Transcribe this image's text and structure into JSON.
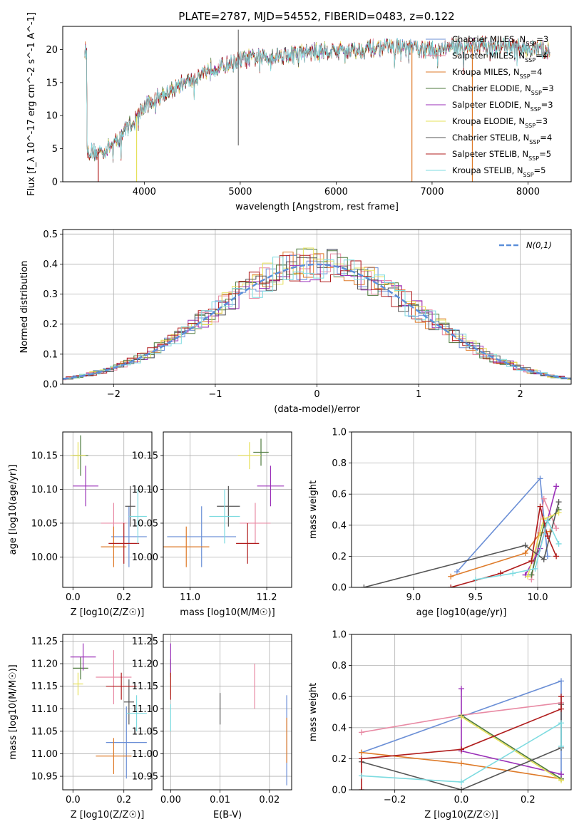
{
  "title": "PLATE=2787, MJD=54552, FIBERID=0483, z=0.122",
  "colors": {
    "Chabrier MILES": "#6b8fd6",
    "Salpeter MILES": "#e88aa4",
    "Kroupa MILES": "#de7a28",
    "Chabrier ELODIE": "#4e7a3e",
    "Salpeter ELODIE": "#9a2fb8",
    "Kroupa ELODIE": "#e6e05a",
    "Chabrier STELIB": "#555555",
    "Salpeter STELIB": "#b01c1c",
    "Kroupa STELIB": "#7ddbe0",
    "normal": "#5b8fd9"
  },
  "models": [
    {
      "name": "Chabrier MILES",
      "color": "#6b8fd6",
      "nssp": "3"
    },
    {
      "name": "Salpeter MILES",
      "color": "#e88aa4",
      "nssp": "4"
    },
    {
      "name": "Kroupa MILES",
      "color": "#de7a28",
      "nssp": "4"
    },
    {
      "name": "Chabrier ELODIE",
      "color": "#4e7a3e",
      "nssp": "3"
    },
    {
      "name": "Salpeter ELODIE",
      "color": "#9a2fb8",
      "nssp": "3"
    },
    {
      "name": "Kroupa ELODIE",
      "color": "#e6e05a",
      "nssp": "3"
    },
    {
      "name": "Chabrier STELIB",
      "color": "#555555",
      "nssp": "4"
    },
    {
      "name": "Salpeter STELIB",
      "color": "#b01c1c",
      "nssp": "5"
    },
    {
      "name": "Kroupa STELIB",
      "color": "#7ddbe0",
      "nssp": "5"
    }
  ],
  "legend_labels": [
    "Chabrier MILES, N=3",
    "Salpeter MILES, N=4",
    "Kroupa MILES, N=4",
    "Chabrier ELODIE, N=3",
    "Salpeter ELODIE, N=3",
    "Kroupa ELODIE, N=3",
    "Chabrier STELIB, N=4",
    "Salpeter STELIB, N=5",
    "Kroupa STELIB, N=5"
  ],
  "chart_data": [
    {
      "type": "line",
      "panel": "spectrum",
      "xlabel": "wavelength [Angstrom, rest frame]",
      "ylabel": "Flux [f_λ 10^-17 erg cm^-2 s^-1 A^-1]",
      "xlim": [
        3150,
        8450
      ],
      "ylim": [
        0,
        23.5
      ],
      "xticks": [
        4000,
        5000,
        6000,
        7000,
        8000
      ],
      "yticks": [
        0,
        5,
        10,
        15,
        20
      ],
      "envelope": {
        "x": [
          3400,
          3500,
          3600,
          3700,
          3800,
          3900,
          4000,
          4100,
          4200,
          4300,
          4400,
          4500,
          4600,
          4700,
          4800,
          4900,
          5000,
          5200,
          5400,
          5600,
          5800,
          6000,
          6200,
          6400,
          6600,
          6800,
          7000,
          7200,
          7400,
          7600,
          7800,
          8000,
          8200
        ],
        "y": [
          4.8,
          4.5,
          5.0,
          6.0,
          8.0,
          9.5,
          11.5,
          12.5,
          13.5,
          14.0,
          15.0,
          15.5,
          16.5,
          17.5,
          17.5,
          18.0,
          18.5,
          19.0,
          19.2,
          19.5,
          19.8,
          20.0,
          20.0,
          20.3,
          20.5,
          20.3,
          20.0,
          20.5,
          20.7,
          20.8,
          20.5,
          20.3,
          20.0
        ]
      },
      "grid": false,
      "legend": "top-right"
    },
    {
      "type": "line",
      "panel": "residual histogram",
      "xlabel": "(data-model)/error",
      "ylabel": "Normed distribution",
      "xlim": [
        -2.5,
        2.5
      ],
      "ylim": [
        0,
        0.515
      ],
      "xticks": [
        -2,
        -1,
        0,
        1,
        2
      ],
      "yticks": [
        0.0,
        0.1,
        0.2,
        0.3,
        0.4,
        0.5
      ],
      "reference_label": "N(0,1)",
      "grid": true,
      "legend": "top-right"
    },
    {
      "type": "scatter",
      "panel": "age vs Z",
      "xlabel": "Z [log10(Z/Z☉)]",
      "ylabel": "age  [log10(age/yr)]",
      "xlim": [
        -0.04,
        0.31
      ],
      "ylim": [
        9.955,
        10.185
      ],
      "xticks": [
        0.0,
        0.2
      ],
      "yticks": [
        10.0,
        10.05,
        10.1,
        10.15
      ],
      "points": [
        {
          "series": "Chabrier MILES",
          "x": 0.22,
          "y": 10.03,
          "xerr": 0.07,
          "yerr": 0.045
        },
        {
          "series": "Salpeter MILES",
          "x": 0.16,
          "y": 10.05,
          "xerr": 0.05,
          "yerr": 0.03
        },
        {
          "series": "Kroupa MILES",
          "x": 0.16,
          "y": 10.015,
          "xerr": 0.05,
          "yerr": 0.03
        },
        {
          "series": "Chabrier ELODIE",
          "x": 0.03,
          "y": 10.15,
          "xerr": 0.03,
          "yerr": 0.03
        },
        {
          "series": "Salpeter ELODIE",
          "x": 0.05,
          "y": 10.105,
          "xerr": 0.05,
          "yerr": 0.03
        },
        {
          "series": "Kroupa ELODIE",
          "x": 0.02,
          "y": 10.15,
          "xerr": 0.03,
          "yerr": 0.02
        },
        {
          "series": "Chabrier STELIB",
          "x": 0.225,
          "y": 10.075,
          "xerr": 0.02,
          "yerr": 0.03
        },
        {
          "series": "Salpeter STELIB",
          "x": 0.2,
          "y": 10.02,
          "xerr": 0.06,
          "yerr": 0.03
        },
        {
          "series": "Kroupa STELIB",
          "x": 0.255,
          "y": 10.06,
          "xerr": 0.035,
          "yerr": 0.04
        }
      ],
      "grid": true
    },
    {
      "type": "scatter",
      "panel": "age vs mass",
      "xlabel": "mass [log10(M/M☉)]",
      "ylabel": "",
      "xlim": [
        10.93,
        11.265
      ],
      "ylim": [
        9.955,
        10.185
      ],
      "xticks": [
        11.0,
        11.2
      ],
      "yticks": [
        10.0,
        10.05,
        10.1,
        10.15
      ],
      "points": [
        {
          "series": "Chabrier MILES",
          "x": 11.03,
          "y": 10.03,
          "xerr": 0.09,
          "yerr": 0.045
        },
        {
          "series": "Salpeter MILES",
          "x": 11.17,
          "y": 10.05,
          "xerr": 0.04,
          "yerr": 0.03
        },
        {
          "series": "Kroupa MILES",
          "x": 10.99,
          "y": 10.015,
          "xerr": 0.06,
          "yerr": 0.03
        },
        {
          "series": "Chabrier ELODIE",
          "x": 11.185,
          "y": 10.155,
          "xerr": 0.02,
          "yerr": 0.02
        },
        {
          "series": "Salpeter ELODIE",
          "x": 11.21,
          "y": 10.105,
          "xerr": 0.035,
          "yerr": 0.03
        },
        {
          "series": "Kroupa ELODIE",
          "x": 11.155,
          "y": 10.15,
          "xerr": 0.03,
          "yerr": 0.02
        },
        {
          "series": "Chabrier STELIB",
          "x": 11.1,
          "y": 10.075,
          "xerr": 0.03,
          "yerr": 0.03
        },
        {
          "series": "Salpeter STELIB",
          "x": 11.15,
          "y": 10.02,
          "xerr": 0.03,
          "yerr": 0.03
        },
        {
          "series": "Kroupa STELIB",
          "x": 11.09,
          "y": 10.06,
          "xerr": 0.04,
          "yerr": 0.04
        }
      ],
      "grid": true
    },
    {
      "type": "line",
      "panel": "mass weight vs age",
      "xlabel": "age  [log10(age/yr)]",
      "ylabel": "mass weight",
      "xlim": [
        8.5,
        10.27
      ],
      "ylim": [
        0,
        1.0
      ],
      "xticks": [
        9.0,
        9.5,
        10.0
      ],
      "yticks": [
        0.0,
        0.2,
        0.4,
        0.6,
        0.8,
        1.0
      ],
      "series": [
        {
          "name": "Chabrier MILES",
          "x": [
            9.35,
            10.02,
            10.08
          ],
          "y": [
            0.1,
            0.7,
            0.2
          ]
        },
        {
          "name": "Salpeter MILES",
          "x": [
            9.95,
            10.05,
            10.15
          ],
          "y": [
            0.05,
            0.57,
            0.38
          ]
        },
        {
          "name": "Kroupa MILES",
          "x": [
            9.3,
            9.9,
            10.02,
            10.1
          ],
          "y": [
            0.07,
            0.22,
            0.35,
            0.36
          ]
        },
        {
          "name": "Chabrier ELODIE",
          "x": [
            9.95,
            10.05,
            10.17
          ],
          "y": [
            0.08,
            0.4,
            0.5
          ]
        },
        {
          "name": "Salpeter ELODIE",
          "x": [
            9.9,
            10.02,
            10.15
          ],
          "y": [
            0.08,
            0.25,
            0.65
          ]
        },
        {
          "name": "Kroupa ELODIE",
          "x": [
            9.92,
            10.05,
            10.17
          ],
          "y": [
            0.07,
            0.44,
            0.48
          ]
        },
        {
          "name": "Chabrier STELIB",
          "x": [
            8.6,
            9.9,
            10.05,
            10.17
          ],
          "y": [
            0.0,
            0.27,
            0.18,
            0.55
          ]
        },
        {
          "name": "Salpeter STELIB",
          "x": [
            9.3,
            9.7,
            9.95,
            10.02,
            10.08,
            10.15
          ],
          "y": [
            0.0,
            0.09,
            0.17,
            0.52,
            0.33,
            0.2
          ]
        },
        {
          "name": "Kroupa STELIB",
          "x": [
            9.5,
            9.8,
            9.98,
            10.08,
            10.17
          ],
          "y": [
            0.05,
            0.09,
            0.12,
            0.43,
            0.28
          ]
        }
      ],
      "grid": true
    },
    {
      "type": "scatter",
      "panel": "mass vs Z",
      "xlabel": "Z [log10(Z/Z☉)]",
      "ylabel": "mass [log10(M/M☉)]",
      "xlim": [
        -0.04,
        0.31
      ],
      "ylim": [
        10.92,
        11.265
      ],
      "xticks": [
        0.0,
        0.2
      ],
      "yticks": [
        10.95,
        11.0,
        11.05,
        11.1,
        11.15,
        11.2,
        11.25
      ],
      "points": [
        {
          "series": "Chabrier MILES",
          "x": 0.21,
          "y": 11.025,
          "xerr": 0.08,
          "yerr": 0.08
        },
        {
          "series": "Salpeter MILES",
          "x": 0.16,
          "y": 11.17,
          "xerr": 0.07,
          "yerr": 0.06
        },
        {
          "series": "Kroupa MILES",
          "x": 0.16,
          "y": 10.995,
          "xerr": 0.07,
          "yerr": 0.04
        },
        {
          "series": "Chabrier ELODIE",
          "x": 0.03,
          "y": 11.19,
          "xerr": 0.03,
          "yerr": 0.025
        },
        {
          "series": "Salpeter ELODIE",
          "x": 0.04,
          "y": 11.215,
          "xerr": 0.05,
          "yerr": 0.03
        },
        {
          "series": "Kroupa ELODIE",
          "x": 0.02,
          "y": 11.155,
          "xerr": 0.02,
          "yerr": 0.025
        },
        {
          "series": "Chabrier STELIB",
          "x": 0.22,
          "y": 11.115,
          "xerr": 0.02,
          "yerr": 0.05
        },
        {
          "series": "Salpeter STELIB",
          "x": 0.19,
          "y": 11.15,
          "xerr": 0.06,
          "yerr": 0.03
        },
        {
          "series": "Kroupa STELIB",
          "x": 0.25,
          "y": 11.09,
          "xerr": 0.04,
          "yerr": 0.04
        }
      ],
      "grid": true
    },
    {
      "type": "scatter",
      "panel": "mass vs E(B-V)",
      "xlabel": "E(B-V)",
      "ylabel": "",
      "xlim": [
        -0.0015,
        0.0245
      ],
      "ylim": [
        10.92,
        11.265
      ],
      "xticks": [
        0.0,
        0.01,
        0.02
      ],
      "yticks": [
        10.95,
        11.0,
        11.05,
        11.1,
        11.15,
        11.2,
        11.25
      ],
      "points": [
        {
          "series": "Chabrier MILES",
          "x": 0.0235,
          "y": 11.03,
          "xerr": 0.0,
          "yerr": 0.1
        },
        {
          "series": "Salpeter MILES",
          "x": 0.017,
          "y": 11.15,
          "xerr": 0.0,
          "yerr": 0.05
        },
        {
          "series": "Kroupa MILES",
          "x": 0.0235,
          "y": 11.03,
          "xerr": 0.0,
          "yerr": 0.05
        },
        {
          "series": "Chabrier ELODIE",
          "x": 0.0,
          "y": 11.19,
          "xerr": 0.0,
          "yerr": 0.02
        },
        {
          "series": "Salpeter ELODIE",
          "x": 0.0,
          "y": 11.21,
          "xerr": 0.0,
          "yerr": 0.035
        },
        {
          "series": "Kroupa ELODIE",
          "x": 0.0,
          "y": 11.155,
          "xerr": 0.0,
          "yerr": 0.025
        },
        {
          "series": "Chabrier STELIB",
          "x": 0.01,
          "y": 11.1,
          "xerr": 0.0,
          "yerr": 0.035
        },
        {
          "series": "Salpeter STELIB",
          "x": 0.0,
          "y": 11.15,
          "xerr": 0.0,
          "yerr": 0.03
        },
        {
          "series": "Kroupa STELIB",
          "x": 0.0,
          "y": 11.08,
          "xerr": 0.0,
          "yerr": 0.03
        }
      ],
      "grid": true
    },
    {
      "type": "line",
      "panel": "mass weight vs Z",
      "xlabel": "Z [log10(Z/Z☉)]",
      "ylabel": "mass weight",
      "xlim": [
        -0.33,
        0.33
      ],
      "ylim": [
        0,
        1.0
      ],
      "xticks": [
        -0.2,
        0.0,
        0.2
      ],
      "yticks": [
        0.0,
        0.2,
        0.4,
        0.6,
        0.8,
        1.0
      ],
      "series": [
        {
          "name": "Chabrier MILES",
          "x": [
            -0.3,
            0.0,
            0.3,
            0.3
          ],
          "y": [
            0.24,
            0.47,
            0.7,
            0.07
          ]
        },
        {
          "name": "Salpeter MILES",
          "x": [
            -0.3,
            0.0,
            0.3
          ],
          "y": [
            0.37,
            0.48,
            0.56
          ]
        },
        {
          "name": "Kroupa MILES",
          "x": [
            -0.3,
            0.0,
            0.3
          ],
          "y": [
            0.24,
            0.17,
            0.07
          ]
        },
        {
          "name": "Chabrier ELODIE",
          "x": [
            0.0,
            0.3
          ],
          "y": [
            0.48,
            0.07
          ]
        },
        {
          "name": "Salpeter ELODIE",
          "x": [
            0.0,
            0.0,
            0.3
          ],
          "y": [
            0.65,
            0.25,
            0.1
          ]
        },
        {
          "name": "Kroupa ELODIE",
          "x": [
            0.0,
            0.3
          ],
          "y": [
            0.47,
            0.06
          ]
        },
        {
          "name": "Chabrier STELIB",
          "x": [
            -0.3,
            0.0,
            0.3,
            0.3
          ],
          "y": [
            0.18,
            0.0,
            0.27,
            0.55
          ]
        },
        {
          "name": "Salpeter STELIB",
          "x": [
            -0.3,
            -0.3,
            0.0,
            0.3,
            0.3
          ],
          "y": [
            0.0,
            0.2,
            0.26,
            0.52,
            0.6
          ]
        },
        {
          "name": "Kroupa STELIB",
          "x": [
            -0.3,
            0.0,
            0.3,
            0.3
          ],
          "y": [
            0.09,
            0.05,
            0.43,
            0.28
          ]
        }
      ],
      "grid": true
    }
  ]
}
